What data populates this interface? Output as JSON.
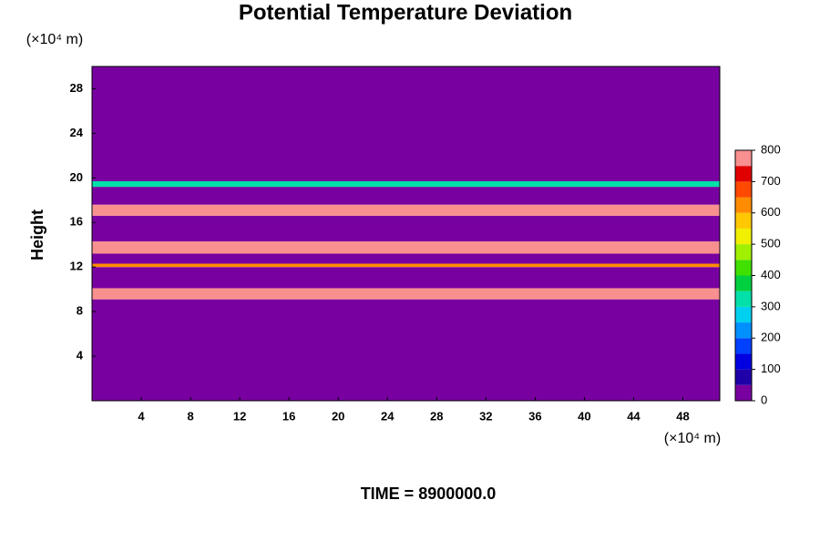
{
  "chart_data": {
    "type": "contour",
    "title": "Potential Temperature Deviation",
    "ylabel": "Height",
    "yunit": "(×10⁴ m)",
    "xunit": "(×10⁴ m)",
    "footer": "TIME = 8900000.0",
    "xlim": [
      0,
      51
    ],
    "xticks": [
      4,
      8,
      12,
      16,
      20,
      24,
      28,
      32,
      36,
      40,
      44,
      48
    ],
    "ylim": [
      0,
      30
    ],
    "yticks": [
      4,
      8,
      12,
      16,
      20,
      24,
      28
    ],
    "ybins": [
      0,
      9.1,
      10.1,
      12.0,
      12.3,
      13.2,
      14.3,
      16.6,
      17.6,
      19.2,
      19.7,
      30
    ],
    "values": [
      0,
      800,
      0,
      600,
      0,
      800,
      0,
      800,
      0,
      300,
      0
    ],
    "clim": [
      0,
      800
    ],
    "cticks": [
      0,
      100,
      200,
      300,
      400,
      500,
      600,
      700,
      800
    ],
    "colors": [
      "#7800a0",
      "#2000a8",
      "#0000e0",
      "#0040ff",
      "#0090ff",
      "#00d0f0",
      "#00e0a8",
      "#00d040",
      "#40e000",
      "#a0f000",
      "#f0f000",
      "#ffc800",
      "#ff8c00",
      "#ff4800",
      "#e00000",
      "#f89090"
    ]
  }
}
